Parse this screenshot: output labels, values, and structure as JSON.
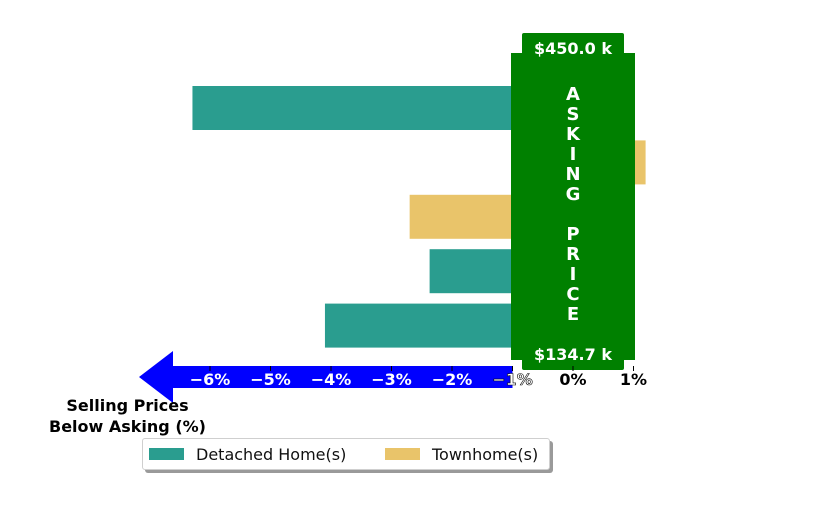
{
  "chart_data": {
    "type": "bar",
    "orientation": "horizontal",
    "xlim": [
      -0.069,
      0.0123
    ],
    "xticks": [
      -0.06,
      -0.05,
      -0.04,
      -0.03,
      -0.02,
      -0.01,
      0,
      0.01
    ],
    "tick_labels": [
      "−6%",
      "−5%",
      "−4%",
      "−3%",
      "−2%",
      "−1%",
      "0%",
      "1%"
    ],
    "bars": [
      {
        "series": "Detached Home(s)",
        "value": -0.0629
      },
      {
        "series": "Townhome(s)",
        "value": 0.012
      },
      {
        "series": "Townhome(s)",
        "value": -0.027
      },
      {
        "series": "Detached Home(s)",
        "value": -0.0237
      },
      {
        "series": "Detached Home(s)",
        "value": -0.041
      }
    ],
    "legend": [
      {
        "name": "Detached Home(s)",
        "color": "#2a9d8f"
      },
      {
        "name": "Townhome(s)",
        "color": "#e9c46a"
      }
    ],
    "legend_placement": "bottom-center",
    "asking_price_panel": {
      "label": "ASKING PRICE",
      "top_value": "$450.0 k",
      "bottom_value": "$134.7 k",
      "color": "#008000"
    },
    "arrow": {
      "label_line1": "Selling Prices",
      "label_line2": "Below Asking (%)",
      "color": "#0000ff"
    },
    "grid": false
  }
}
